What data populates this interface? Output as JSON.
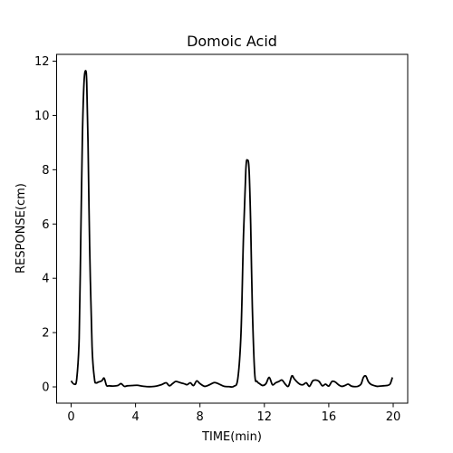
{
  "chart_data": {
    "type": "line",
    "title": "Domoic Acid",
    "xlabel": "TIME(min)",
    "ylabel": "RESPONSE(cm)",
    "xlim": [
      -0.9,
      20.9
    ],
    "ylim": [
      -0.6,
      12.25
    ],
    "xticks": [
      "0",
      "4",
      "8",
      "12",
      "16",
      "20"
    ],
    "yticks": [
      "0",
      "2",
      "4",
      "6",
      "8",
      "10",
      "12"
    ],
    "grid": false,
    "legend": "none",
    "line_color": "#000000",
    "series": [
      {
        "x": [
          0.0,
          0.2,
          0.35,
          0.5,
          0.6,
          0.7,
          0.8,
          0.9,
          0.97,
          1.05,
          1.15,
          1.3,
          1.45,
          1.55,
          1.7,
          1.9,
          2.05,
          2.2,
          2.35,
          2.6,
          2.9,
          3.1,
          3.3,
          3.5,
          3.8,
          4.1,
          4.4,
          4.7,
          5.0,
          5.3,
          5.6,
          5.9,
          6.1,
          6.3,
          6.5,
          6.8,
          7.0,
          7.2,
          7.4,
          7.6,
          7.8,
          8.0,
          8.3,
          8.6,
          8.9,
          9.2,
          9.5,
          9.8,
          10.1,
          10.35,
          10.55,
          10.7,
          10.85,
          10.95,
          11.05,
          11.15,
          11.25,
          11.4,
          11.55,
          11.7,
          11.9,
          12.1,
          12.3,
          12.5,
          12.7,
          12.9,
          13.1,
          13.3,
          13.5,
          13.7,
          13.85,
          14.0,
          14.2,
          14.4,
          14.6,
          14.8,
          15.0,
          15.2,
          15.4,
          15.6,
          15.8,
          16.0,
          16.2,
          16.4,
          16.6,
          16.8,
          17.0,
          17.2,
          17.4,
          17.6,
          17.8,
          18.0,
          18.15,
          18.3,
          18.45,
          18.6,
          18.8,
          19.0,
          19.2,
          19.4,
          19.6,
          19.8,
          19.95
        ],
        "y": [
          0.22,
          0.1,
          0.3,
          1.8,
          5.5,
          9.2,
          11.2,
          11.65,
          11.2,
          9.0,
          5.2,
          1.5,
          0.3,
          0.15,
          0.18,
          0.22,
          0.32,
          0.05,
          0.04,
          0.03,
          0.05,
          0.12,
          0.02,
          0.04,
          0.05,
          0.06,
          0.03,
          0.01,
          0.01,
          0.03,
          0.08,
          0.15,
          0.04,
          0.12,
          0.2,
          0.15,
          0.12,
          0.08,
          0.15,
          0.05,
          0.22,
          0.12,
          0.02,
          0.08,
          0.16,
          0.1,
          0.02,
          0.01,
          0.02,
          0.3,
          2.0,
          5.5,
          8.0,
          8.35,
          8.0,
          6.0,
          3.0,
          0.5,
          0.2,
          0.12,
          0.05,
          0.12,
          0.35,
          0.08,
          0.15,
          0.2,
          0.25,
          0.1,
          0.03,
          0.4,
          0.3,
          0.2,
          0.1,
          0.08,
          0.15,
          0.02,
          0.22,
          0.25,
          0.2,
          0.04,
          0.1,
          0.03,
          0.2,
          0.18,
          0.08,
          0.02,
          0.05,
          0.1,
          0.03,
          0.01,
          0.02,
          0.1,
          0.35,
          0.4,
          0.2,
          0.1,
          0.05,
          0.02,
          0.03,
          0.04,
          0.05,
          0.1,
          0.35
        ]
      }
    ]
  }
}
